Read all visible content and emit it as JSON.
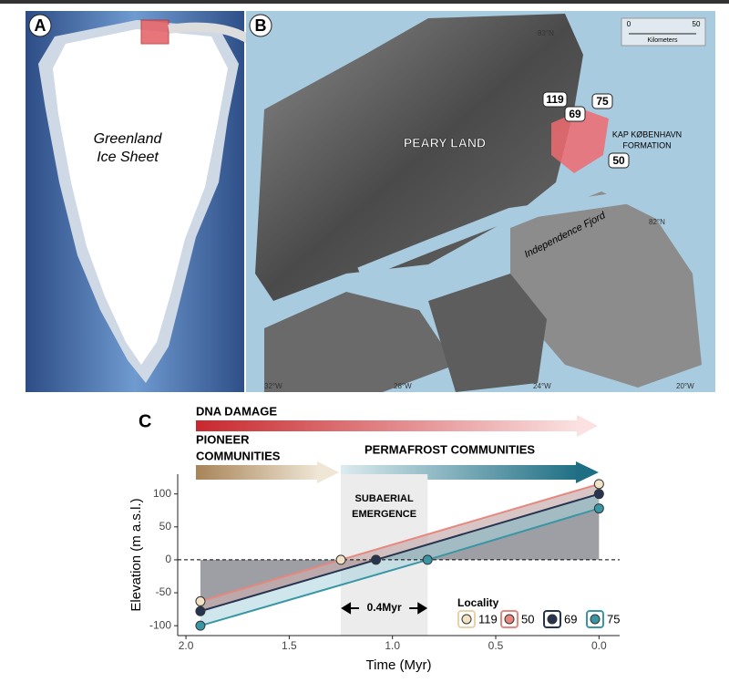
{
  "maps": {
    "panel_a": {
      "label": "A",
      "ice_sheet": [
        "Greenland",
        "Ice Sheet"
      ]
    },
    "panel_b": {
      "label": "B",
      "region": "PEARY LAND",
      "formation": [
        "KAP KØBENHAVN",
        "FORMATION"
      ],
      "fjord": "Independence Fjord",
      "localities": [
        "119",
        "75",
        "69",
        "50"
      ],
      "latitudes": [
        "83°N",
        "82°N"
      ],
      "longitudes": [
        "32°W",
        "28°W",
        "24°W",
        "20°W"
      ],
      "scale": {
        "start": "0",
        "end": "50",
        "unit": "Kilometers"
      }
    }
  },
  "chart_data": {
    "type": "line",
    "panel_label": "C",
    "x_label": "Time (Myr)",
    "y_label": "Elevation (m a.s.l.)",
    "xlim": [
      2.04,
      -0.1
    ],
    "ylim": [
      -115,
      130
    ],
    "xticks": [
      {
        "value": 2,
        "label": "2.0"
      },
      1.5,
      {
        "value": 1,
        "label": "1.0"
      },
      0.5,
      {
        "value": 0,
        "label": "0.0"
      }
    ],
    "yticks": [
      100,
      50,
      0,
      -50,
      -100
    ],
    "zero_line": true,
    "series": [
      {
        "name": "119",
        "color": "#f3e3c6",
        "x": [
          1.93,
          1.25,
          0
        ],
        "values": [
          -63,
          0,
          115
        ]
      },
      {
        "name": "69",
        "color": "#27344f",
        "x": [
          1.93,
          1.08,
          0
        ],
        "values": [
          -78,
          0,
          100
        ]
      },
      {
        "name": "75",
        "color": "#3a96a4",
        "x": [
          1.93,
          0.83,
          0
        ],
        "values": [
          -100,
          0,
          78
        ]
      }
    ],
    "legend_title": "Locality",
    "legend": [
      {
        "name": "119",
        "color": "#f3e3c6"
      },
      {
        "name": "50",
        "color": "#e7877d"
      },
      {
        "name": "69",
        "color": "#27344f"
      },
      {
        "name": "75",
        "color": "#3a96a4"
      }
    ],
    "shaded_region": {
      "x": [
        1.25,
        0.83
      ],
      "label": [
        "SUBAERIAL",
        "EMERGENCE"
      ],
      "span_label": "0.4Myr"
    },
    "annotations": {
      "dna": "DNA DAMAGE",
      "pioneer": [
        "PIONEER",
        "COMMUNITIES"
      ],
      "permafrost": "PERMAFROST COMMUNITIES"
    }
  }
}
